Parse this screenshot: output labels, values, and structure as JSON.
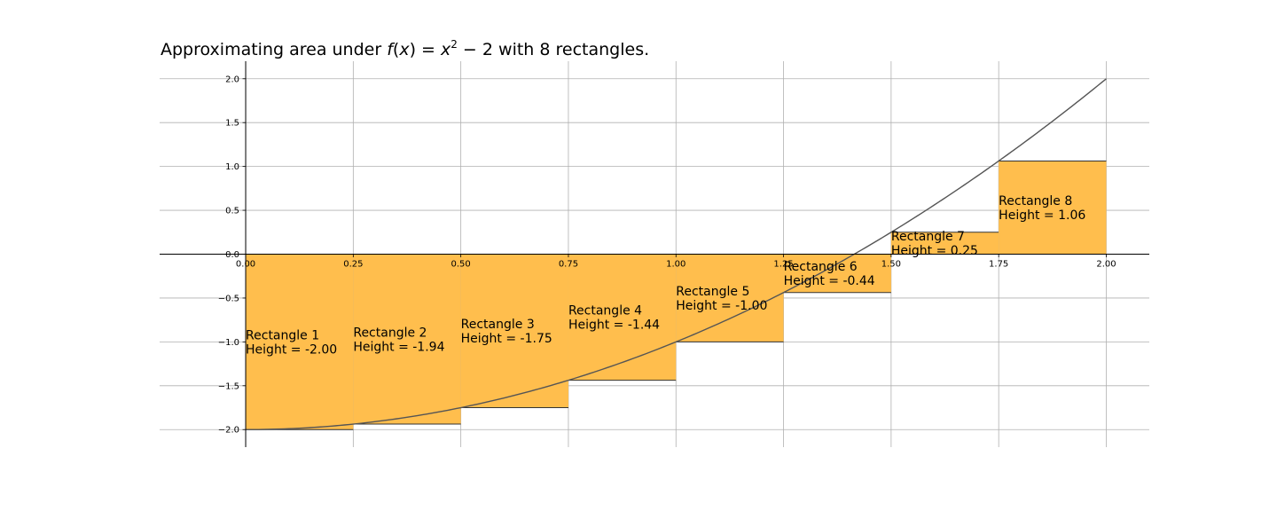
{
  "chart_data": {
    "type": "bar",
    "title_parts": {
      "prefix": "Approximating area under ",
      "func_f": "f",
      "func_arg_open": "(",
      "func_x": "x",
      "func_arg_close": ")",
      "eq": " = ",
      "var_x": "x",
      "exponent": "2",
      "minus": " − ",
      "constant": "2",
      "suffix": " with 8 rectangles."
    },
    "function": "x^2 - 2",
    "xlim": [
      -0.2,
      2.1
    ],
    "ylim": [
      -2.2,
      2.2
    ],
    "grid": true,
    "x_ticks": [
      {
        "value": 0.0,
        "label": "0.00"
      },
      {
        "value": 0.25,
        "label": "0.25"
      },
      {
        "value": 0.5,
        "label": "0.50"
      },
      {
        "value": 0.75,
        "label": "0.75"
      },
      {
        "value": 1.0,
        "label": "1.00"
      },
      {
        "value": 1.25,
        "label": "1.25"
      },
      {
        "value": 1.5,
        "label": "1.50"
      },
      {
        "value": 1.75,
        "label": "1.75"
      },
      {
        "value": 2.0,
        "label": "2.00"
      }
    ],
    "y_ticks": [
      {
        "value": 2.0,
        "label": "2.0"
      },
      {
        "value": 1.5,
        "label": "1.5"
      },
      {
        "value": 1.0,
        "label": "1.0"
      },
      {
        "value": 0.5,
        "label": "0.5"
      },
      {
        "value": 0.0,
        "label": "0.0"
      },
      {
        "value": -0.5,
        "label": "−0.5"
      },
      {
        "value": -1.0,
        "label": "−1.0"
      },
      {
        "value": -1.5,
        "label": "−1.5"
      },
      {
        "value": -2.0,
        "label": "−2.0"
      }
    ],
    "rectangles": [
      {
        "x_start": 0.0,
        "x_end": 0.25,
        "height": -2.0,
        "name": "Rectangle 1",
        "height_label": "Height = -2.00"
      },
      {
        "x_start": 0.25,
        "x_end": 0.5,
        "height": -1.9375,
        "name": "Rectangle 2",
        "height_label": "Height = -1.94"
      },
      {
        "x_start": 0.5,
        "x_end": 0.75,
        "height": -1.75,
        "name": "Rectangle 3",
        "height_label": "Height = -1.75"
      },
      {
        "x_start": 0.75,
        "x_end": 1.0,
        "height": -1.4375,
        "name": "Rectangle 4",
        "height_label": "Height = -1.44"
      },
      {
        "x_start": 1.0,
        "x_end": 1.25,
        "height": -1.0,
        "name": "Rectangle 5",
        "height_label": "Height = -1.00"
      },
      {
        "x_start": 1.25,
        "x_end": 1.5,
        "height": -0.4375,
        "name": "Rectangle 6",
        "height_label": "Height = -0.44"
      },
      {
        "x_start": 1.5,
        "x_end": 1.75,
        "height": 0.25,
        "name": "Rectangle 7",
        "height_label": "Height = 0.25"
      },
      {
        "x_start": 1.75,
        "x_end": 2.0,
        "height": 1.0625,
        "name": "Rectangle 8",
        "height_label": "Height = 1.06"
      }
    ],
    "colors": {
      "bar_fill": "#ffbe4d",
      "bar_edge": "#333333",
      "curve": "#555555",
      "grid": "#b0b0b0",
      "axis": "#000000"
    }
  }
}
